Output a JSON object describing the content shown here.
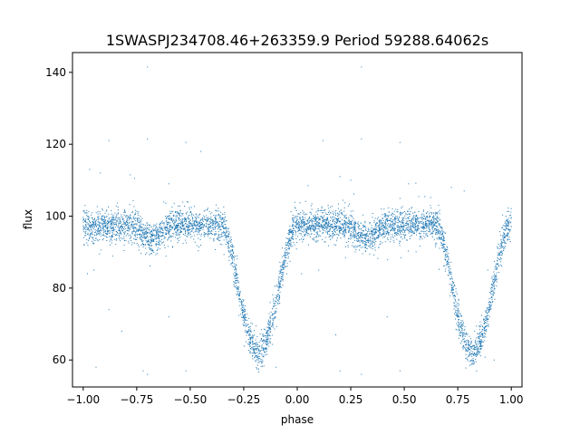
{
  "chart_data": {
    "type": "scatter",
    "title": "1SWASPJ234708.46+263359.9 Period 59288.64062s",
    "xlabel": "phase",
    "ylabel": "flux",
    "xlim": [
      -1.05,
      1.05
    ],
    "ylim": [
      52.5,
      145.5
    ],
    "xticks": [
      -1.0,
      -0.75,
      -0.5,
      -0.25,
      0.0,
      0.25,
      0.5,
      0.75,
      1.0
    ],
    "xtick_labels": [
      "−1.00",
      "−0.75",
      "−0.50",
      "−0.25",
      "0.00",
      "0.25",
      "0.50",
      "0.75",
      "1.00"
    ],
    "yticks": [
      60,
      80,
      100,
      120,
      140
    ],
    "ytick_labels": [
      "60",
      "80",
      "100",
      "120",
      "140"
    ],
    "grid": false,
    "marker_color": "#1f77b4",
    "baseline_flux": 97.5,
    "baseline_scatter": 2.0,
    "primary_eclipse": {
      "center_phase": -0.18,
      "min_flux": 62,
      "half_width": 0.17
    },
    "primary_eclipse_repeat": {
      "center_phase": 0.82,
      "min_flux": 62,
      "half_width": 0.17
    },
    "secondary_dip": {
      "center_phase": -0.68,
      "min_flux": 94,
      "half_width": 0.1
    },
    "secondary_dip_repeat": {
      "center_phase": 0.32,
      "min_flux": 94,
      "half_width": 0.1
    },
    "outliers": [
      [
        -0.88,
        121
      ],
      [
        -0.7,
        141.5
      ],
      [
        -0.7,
        121.5
      ],
      [
        -0.52,
        120.5
      ],
      [
        -0.45,
        118
      ],
      [
        0.12,
        121
      ],
      [
        0.3,
        141.5
      ],
      [
        0.3,
        121.5
      ],
      [
        0.48,
        120.5
      ],
      [
        -0.97,
        113
      ],
      [
        -0.92,
        112
      ],
      [
        -0.78,
        111.5
      ],
      [
        -0.76,
        110.5
      ],
      [
        0.2,
        111
      ],
      [
        0.25,
        110
      ],
      [
        -0.6,
        109
      ],
      [
        0.05,
        108.5
      ],
      [
        0.52,
        109
      ],
      [
        0.72,
        108
      ],
      [
        0.78,
        107
      ],
      [
        -0.94,
        58
      ],
      [
        -0.72,
        57
      ],
      [
        -0.7,
        56
      ],
      [
        -0.52,
        57
      ],
      [
        0.2,
        57
      ],
      [
        0.3,
        56
      ],
      [
        0.48,
        57
      ],
      [
        0.92,
        60
      ],
      [
        -0.1,
        58
      ],
      [
        -0.6,
        72
      ],
      [
        0.42,
        72
      ],
      [
        -0.82,
        68
      ],
      [
        0.18,
        67
      ],
      [
        -0.88,
        74
      ],
      [
        0.1,
        85
      ],
      [
        -0.98,
        84
      ],
      [
        -0.95,
        85
      ],
      [
        0.02,
        84
      ]
    ]
  }
}
